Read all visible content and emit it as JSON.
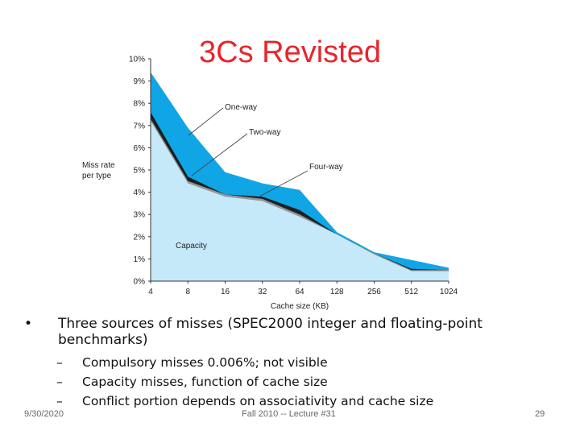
{
  "slide": {
    "title": "3Cs Revisted",
    "bullet": "Three sources of misses (SPEC2000 integer and floating-point benchmarks)",
    "sub_bullets": [
      "Compulsory misses 0.006%; not visible",
      "Capacity misses, function of cache size",
      "Conflict portion depends on associativity and cache size"
    ],
    "footer": {
      "date": "9/30/2020",
      "center": "Fall 2010 -- Lecture #31",
      "page": "29"
    }
  },
  "chart_data": {
    "type": "area",
    "xlabel": "Cache size (KB)",
    "ylabel": "Miss rate per type",
    "x_scale": "log2",
    "categories": [
      "4",
      "8",
      "16",
      "32",
      "64",
      "128",
      "256",
      "512",
      "1024"
    ],
    "y_ticks": [
      "0%",
      "1%",
      "2%",
      "3%",
      "4%",
      "5%",
      "6%",
      "7%",
      "8%",
      "9%",
      "10%"
    ],
    "ylim": [
      0,
      10
    ],
    "series": [
      {
        "name": "One-way",
        "values": [
          9.4,
          6.9,
          4.9,
          4.4,
          4.1,
          2.2,
          1.3,
          0.95,
          0.6
        ],
        "color": "#10a6e6"
      },
      {
        "name": "Two-way",
        "values": [
          7.6,
          4.7,
          3.9,
          3.8,
          3.2,
          2.1,
          1.25,
          0.55,
          0.5
        ],
        "color": "#1f1f1f"
      },
      {
        "name": "Four-way",
        "values": [
          7.3,
          4.5,
          3.9,
          3.7,
          3.0,
          2.1,
          1.25,
          0.5,
          0.5
        ],
        "color": "#8f979e"
      },
      {
        "name": "Capacity",
        "values": [
          7.2,
          4.4,
          3.8,
          3.6,
          2.9,
          2.1,
          1.2,
          0.45,
          0.45
        ],
        "color": "#c6e9fa"
      }
    ],
    "annotations": [
      "One-way",
      "Two-way",
      "Four-way",
      "Capacity"
    ],
    "grid": false,
    "legend": "none"
  }
}
